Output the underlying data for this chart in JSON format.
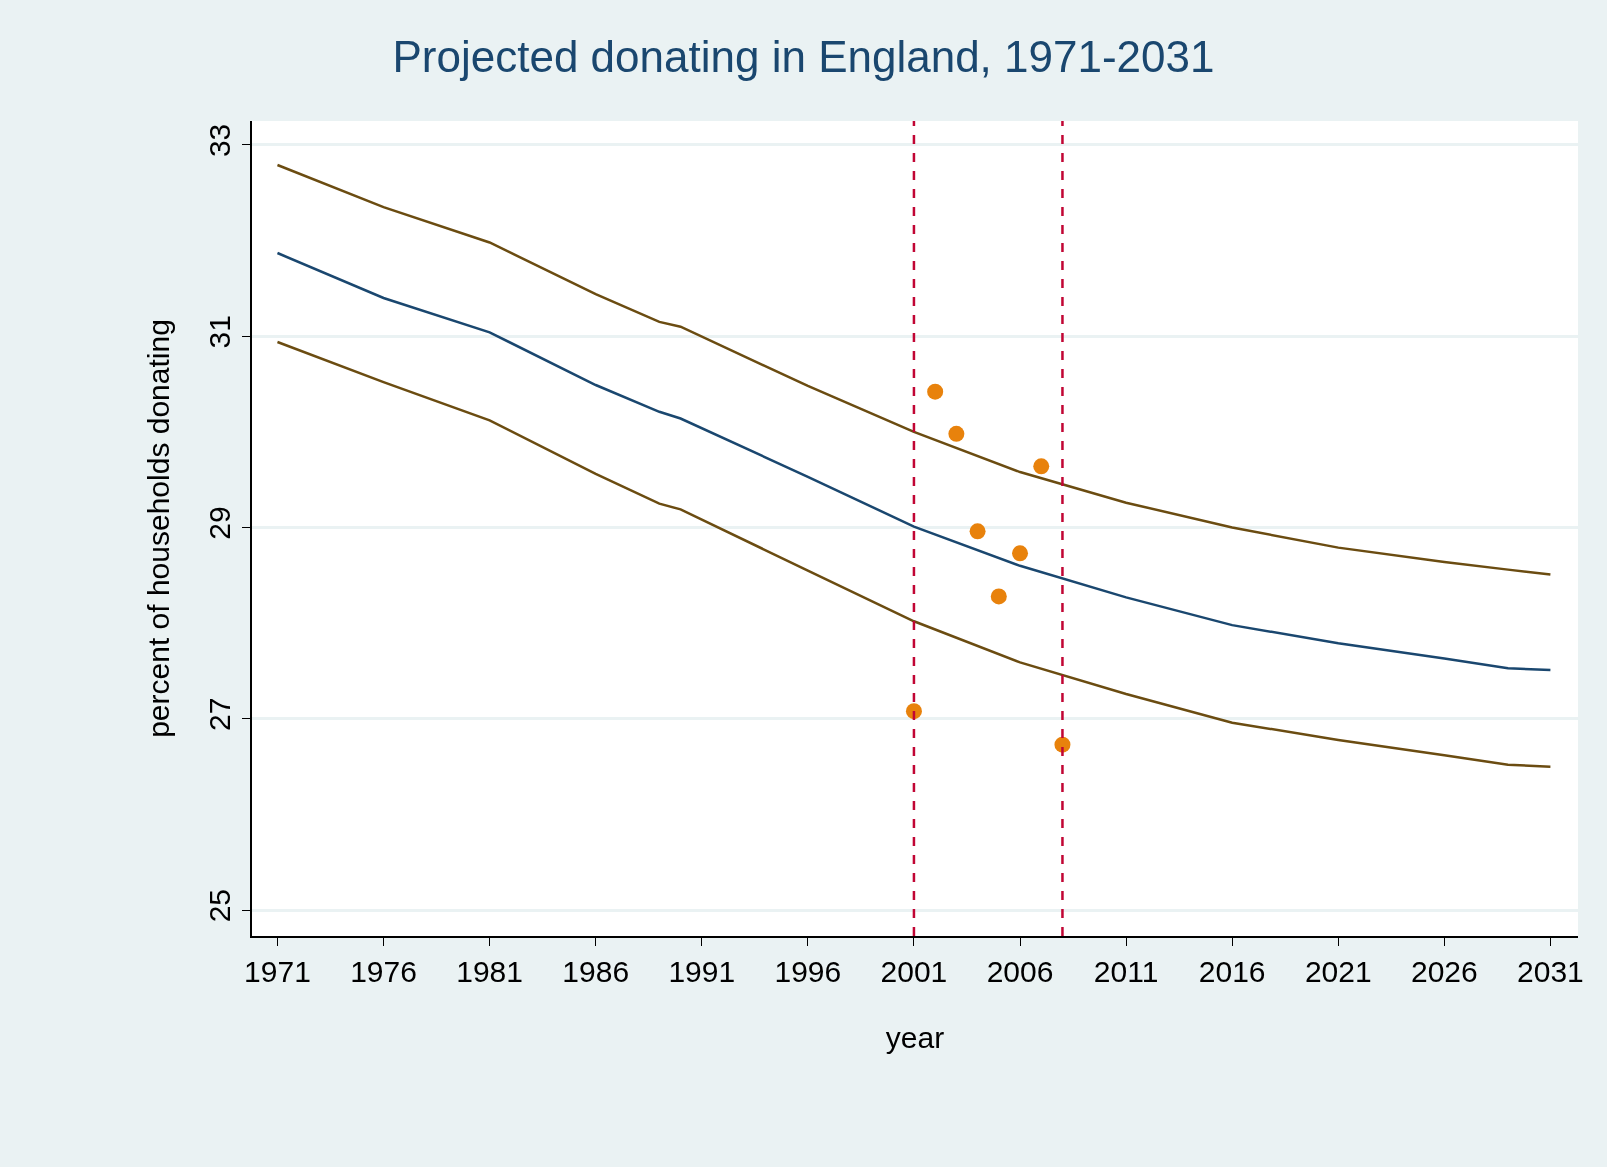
{
  "chart_data": {
    "type": "line",
    "title": "Projected donating in England, 1971-2031",
    "xlabel": "year",
    "ylabel": "percent of households donating",
    "series": [
      {
        "color": "#6b4c11",
        "x": [
          1971,
          1976,
          1981,
          1986,
          1989,
          1990,
          1996,
          2001,
          2006,
          2011,
          2016,
          2021,
          2026,
          2029,
          2031
        ],
        "values": [
          32.79,
          32.35,
          31.98,
          31.44,
          31.15,
          31.1,
          30.48,
          30.0,
          29.58,
          29.26,
          29.0,
          28.79,
          28.64,
          28.56,
          28.51
        ]
      },
      {
        "color": "#1a476f",
        "x": [
          1971,
          1976,
          1981,
          1986,
          1989,
          1990,
          1996,
          2001,
          2006,
          2011,
          2016,
          2021,
          2026,
          2029,
          2031
        ],
        "values": [
          31.87,
          31.4,
          31.04,
          30.49,
          30.21,
          30.14,
          29.53,
          29.01,
          28.6,
          28.27,
          27.98,
          27.79,
          27.63,
          27.53,
          27.51
        ]
      },
      {
        "color": "#6b4c11",
        "x": [
          1971,
          1976,
          1981,
          1986,
          1989,
          1990,
          1996,
          2001,
          2006,
          2011,
          2016,
          2021,
          2026,
          2029,
          2031
        ],
        "values": [
          30.94,
          30.52,
          30.12,
          29.56,
          29.25,
          29.19,
          28.55,
          28.02,
          27.59,
          27.26,
          26.96,
          26.78,
          26.62,
          26.52,
          26.5
        ]
      },
      {
        "type": "scatter",
        "color": "#e8820c",
        "x": [
          2001,
          2002,
          2003,
          2004,
          2005,
          2006,
          2007,
          2008
        ],
        "values": [
          27.08,
          30.42,
          29.98,
          28.96,
          28.28,
          28.73,
          29.64,
          26.73
        ]
      }
    ],
    "ref_lines": [
      {
        "axis": "x",
        "value": 2001,
        "color": "#c10534",
        "line_style": "dashed"
      },
      {
        "axis": "x",
        "value": 2008,
        "color": "#c10534",
        "line_style": "dashed"
      }
    ],
    "xlim": [
      1969.8,
      2032.3
    ],
    "xticks": [
      1971,
      1976,
      1981,
      1986,
      1991,
      1996,
      2001,
      2006,
      2011,
      2016,
      2021,
      2026,
      2031
    ],
    "ylim": [
      24.73,
      33.25
    ],
    "yticks": [
      25,
      27,
      29,
      31,
      33
    ],
    "grid": "y",
    "legend": false,
    "line_style": "solid"
  }
}
